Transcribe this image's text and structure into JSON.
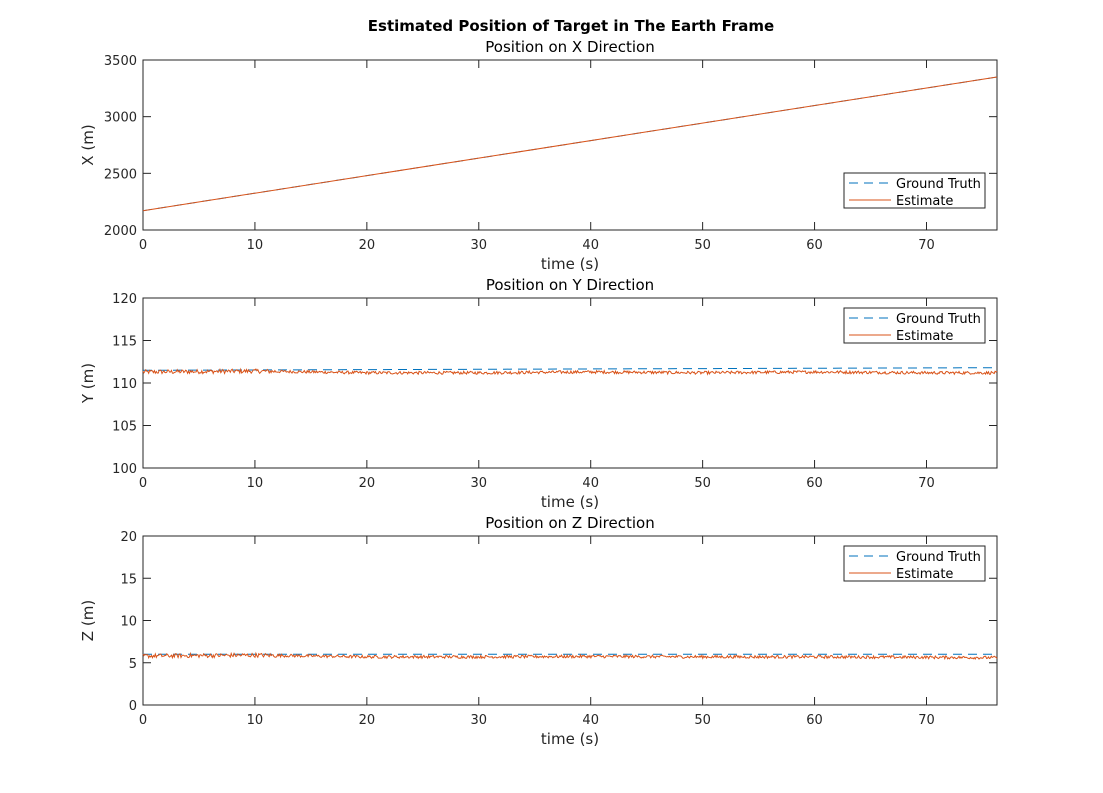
{
  "figure": {
    "title": "Estimated Position of Target in The Earth Frame"
  },
  "colors": {
    "ground_truth": "#0072BD",
    "estimate": "#D95319",
    "axis": "#262626",
    "legend_border": "#262626"
  },
  "chart_data": [
    {
      "type": "line",
      "title": "Position on X Direction",
      "xlabel": "time (s)",
      "ylabel": "X (m)",
      "xlim": [
        0,
        76.3
      ],
      "ylim": [
        2000,
        3500
      ],
      "xticks": [
        0,
        10,
        20,
        30,
        40,
        50,
        60,
        70
      ],
      "yticks": [
        2000,
        2500,
        3000,
        3500
      ],
      "grid": false,
      "legend_location": "bottom-right",
      "series": [
        {
          "name": "Ground Truth",
          "style": "dashed",
          "x": [
            0,
            76.3
          ],
          "y": [
            2170,
            3350
          ]
        },
        {
          "name": "Estimate",
          "style": "solid",
          "noise": 0,
          "x": [
            0,
            76.3
          ],
          "y": [
            2170,
            3350
          ]
        }
      ]
    },
    {
      "type": "line",
      "title": "Position on Y Direction",
      "xlabel": "time (s)",
      "ylabel": "Y (m)",
      "xlim": [
        0,
        76.3
      ],
      "ylim": [
        100,
        120
      ],
      "xticks": [
        0,
        10,
        20,
        30,
        40,
        50,
        60,
        70
      ],
      "yticks": [
        100,
        105,
        110,
        115,
        120
      ],
      "grid": false,
      "legend_location": "top-right",
      "series": [
        {
          "name": "Ground Truth",
          "style": "dashed",
          "x": [
            0,
            76.3
          ],
          "y": [
            111.5,
            111.8
          ]
        },
        {
          "name": "Estimate",
          "style": "solid",
          "noise": 0.25,
          "x": [
            0,
            10,
            20,
            30,
            40,
            50,
            60,
            70,
            76.3
          ],
          "y": [
            111.3,
            111.4,
            111.2,
            111.2,
            111.3,
            111.2,
            111.3,
            111.2,
            111.2
          ]
        }
      ]
    },
    {
      "type": "line",
      "title": "Position on Z Direction",
      "xlabel": "time (s)",
      "ylabel": "Z (m)",
      "xlim": [
        0,
        76.3
      ],
      "ylim": [
        0,
        20
      ],
      "xticks": [
        0,
        10,
        20,
        30,
        40,
        50,
        60,
        70
      ],
      "yticks": [
        0,
        5,
        10,
        15,
        20
      ],
      "grid": false,
      "legend_location": "top-right",
      "series": [
        {
          "name": "Ground Truth",
          "style": "dashed",
          "x": [
            0,
            76.3
          ],
          "y": [
            6.0,
            6.0
          ]
        },
        {
          "name": "Estimate",
          "style": "solid",
          "noise": 0.25,
          "x": [
            0,
            10,
            20,
            30,
            40,
            50,
            60,
            70,
            76.3
          ],
          "y": [
            5.8,
            5.9,
            5.7,
            5.7,
            5.75,
            5.7,
            5.7,
            5.65,
            5.6
          ]
        }
      ]
    }
  ]
}
